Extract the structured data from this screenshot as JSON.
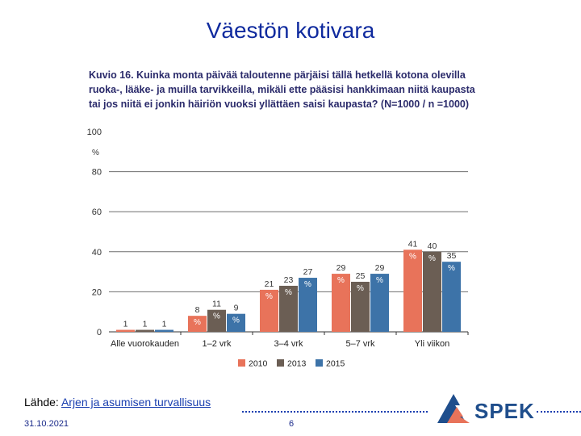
{
  "slide": {
    "title": "Väestön kotivara",
    "source_label": "Lähde: ",
    "source_link": "Arjen ja asumisen turvallisuus",
    "date": "31.10.2021",
    "page_number": "6",
    "logo_text": "SPEK"
  },
  "colors": {
    "title": "#0f2a9e",
    "series_2010": "#e8735a",
    "series_2013": "#6b5e54",
    "series_2015": "#3d73a8"
  },
  "chart_data": {
    "type": "bar",
    "title": "Kuvio 16. Kuinka monta päivää taloutenne pärjäisi tällä hetkellä kotona olevilla ruoka-, lääke- ja muilla tarvikkeilla, mikäli ette pääsisi hankkimaan niitä kaupasta tai jos niitä ei jonkin häiriön vuoksi yllättäen saisi kaupasta? (N=1000 / n =1000)",
    "ylabel": "%",
    "ylim": [
      0,
      100
    ],
    "yticks": [
      0,
      20,
      40,
      60,
      80,
      100
    ],
    "legend_position": "bottom",
    "categories": [
      "Alle vuorokauden",
      "1–2 vrk",
      "3–4 vrk",
      "5–7 vrk",
      "Yli viikon"
    ],
    "series": [
      {
        "name": "2010",
        "values": [
          1,
          8,
          21,
          29,
          41
        ],
        "labels": [
          "1",
          "8 %",
          "21 %",
          "29 %",
          "41 %"
        ]
      },
      {
        "name": "2013",
        "values": [
          1,
          11,
          23,
          25,
          40
        ],
        "labels": [
          "1",
          "11 %",
          "23 %",
          "25 %",
          "40 %"
        ]
      },
      {
        "name": "2015",
        "values": [
          1,
          9,
          27,
          29,
          35
        ],
        "labels": [
          "1",
          "9 %",
          "27 %",
          "29 %",
          "35 %"
        ]
      }
    ]
  }
}
